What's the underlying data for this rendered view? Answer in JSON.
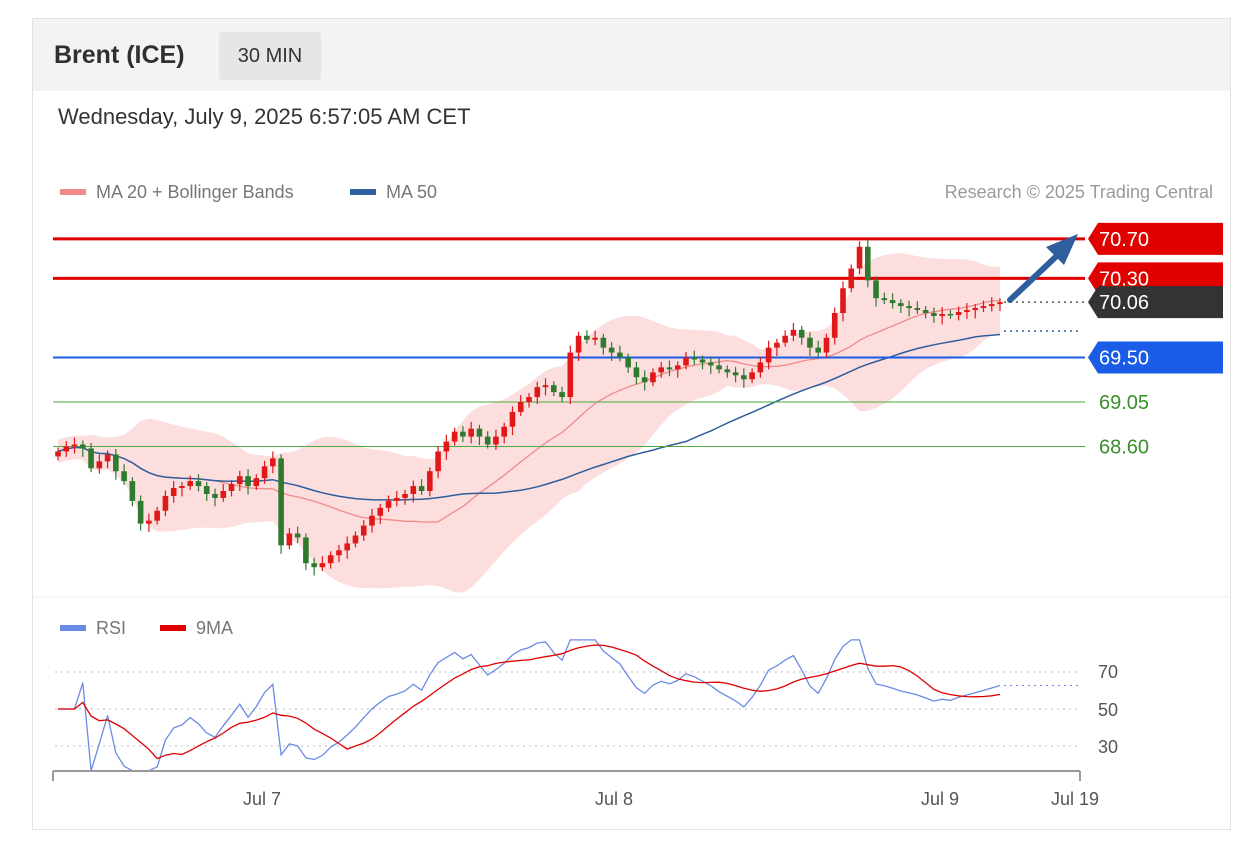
{
  "instrument": "Brent (ICE)",
  "timeframe": "30 MIN",
  "datetime": "Wednesday, July 9, 2025 6:57:05 AM CET",
  "legend": [
    {
      "label": "MA 20 + Bollinger Bands",
      "color": "#f08a8a"
    },
    {
      "label": "MA 50",
      "color": "#2f5e9e"
    }
  ],
  "copyright": "Research © 2025 Trading Central",
  "rsi_legend": [
    {
      "label": "RSI",
      "color": "#6a8be3"
    },
    {
      "label": "9MA",
      "color": "#e00000"
    }
  ],
  "colors": {
    "resistance": "#e00000",
    "support_strong": "#1a5ce6",
    "support_weak": "#4aaa3a",
    "candle_up": "#e01818",
    "candle_down": "#2f7a2f",
    "band": "#fcdede",
    "arrow": "#2f5e9e"
  },
  "chart_data": [
    {
      "type": "candlestick",
      "title": "",
      "price_levels": [
        {
          "value": 70.7,
          "label": "70.70",
          "kind": "resistance"
        },
        {
          "value": 70.3,
          "label": "70.30",
          "kind": "resistance"
        },
        {
          "value": 70.06,
          "label": "70.06",
          "kind": "last"
        },
        {
          "value": 69.5,
          "label": "69.50",
          "kind": "support"
        },
        {
          "value": 69.05,
          "label": "69.05",
          "kind": "support"
        },
        {
          "value": 68.6,
          "label": "68.60",
          "kind": "support"
        }
      ],
      "x_ticks": [
        "Jul 7",
        "Jul 8",
        "Jul 9",
        "Jul 19"
      ],
      "ylim": [
        67.25,
        70.85
      ],
      "close_series": [
        68.55,
        68.6,
        68.62,
        68.58,
        68.38,
        68.45,
        68.52,
        68.35,
        68.25,
        68.05,
        67.82,
        67.85,
        67.95,
        68.1,
        68.18,
        68.2,
        68.25,
        68.2,
        68.12,
        68.08,
        68.15,
        68.22,
        68.3,
        68.2,
        68.28,
        68.4,
        68.48,
        67.6,
        67.72,
        67.68,
        67.42,
        67.38,
        67.42,
        67.5,
        67.55,
        67.62,
        67.7,
        67.8,
        67.9,
        67.98,
        68.05,
        68.08,
        68.12,
        68.2,
        68.15,
        68.35,
        68.55,
        68.65,
        68.75,
        68.7,
        68.78,
        68.7,
        68.62,
        68.7,
        68.8,
        68.95,
        69.05,
        69.1,
        69.2,
        69.22,
        69.15,
        69.1,
        69.55,
        69.72,
        69.68,
        69.7,
        69.6,
        69.55,
        69.5,
        69.4,
        69.3,
        69.25,
        69.35,
        69.4,
        69.38,
        69.42,
        69.5,
        69.48,
        69.45,
        69.42,
        69.38,
        69.35,
        69.32,
        69.28,
        69.35,
        69.45,
        69.6,
        69.65,
        69.72,
        69.78,
        69.7,
        69.6,
        69.55,
        69.7,
        69.95,
        70.2,
        70.4,
        70.62,
        70.28,
        70.1,
        70.08,
        70.05,
        70.02,
        70.0,
        69.98,
        69.95,
        69.92,
        69.94,
        69.93,
        69.96,
        69.98,
        70.0,
        70.02,
        70.04,
        70.06
      ]
    },
    {
      "type": "line",
      "title": "",
      "series": [
        {
          "name": "RSI"
        },
        {
          "name": "9MA"
        }
      ],
      "y_ticks": [
        70,
        50,
        30
      ],
      "ylim": [
        20,
        80
      ]
    }
  ]
}
